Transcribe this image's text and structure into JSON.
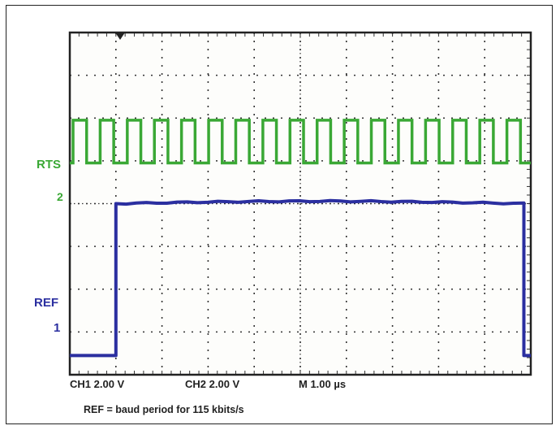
{
  "chart_data": {
    "type": "line",
    "title": "",
    "grid": true,
    "grid_divisions": {
      "x": 10,
      "y": 8
    },
    "x_unit": "µs",
    "time_per_division_us": 1.0,
    "x_range_us": [
      0,
      10
    ],
    "series": [
      {
        "name": "RTS",
        "channel_marker": "2",
        "color": "#3aa835",
        "shape": "square-wave",
        "cycles": 17,
        "volts_per_division": 2.0,
        "low_level_div": 4.95,
        "high_level_div": 5.95
      },
      {
        "name": "REF",
        "channel_marker": "1",
        "color": "#2b2fa0",
        "shape": "pulse",
        "volts_per_division": 2.0,
        "low_level_div": 0.45,
        "high_level_div": 4.0,
        "rise_time_us": 1.0,
        "fall_time_us": 9.85
      }
    ],
    "bottom_labels": {
      "ch1": "CH1  2.00 V",
      "ch2": "CH2  2.00 V",
      "timebase": "M  1.00 µs"
    },
    "caption": "REF = baud period for 115 kbits/s"
  }
}
